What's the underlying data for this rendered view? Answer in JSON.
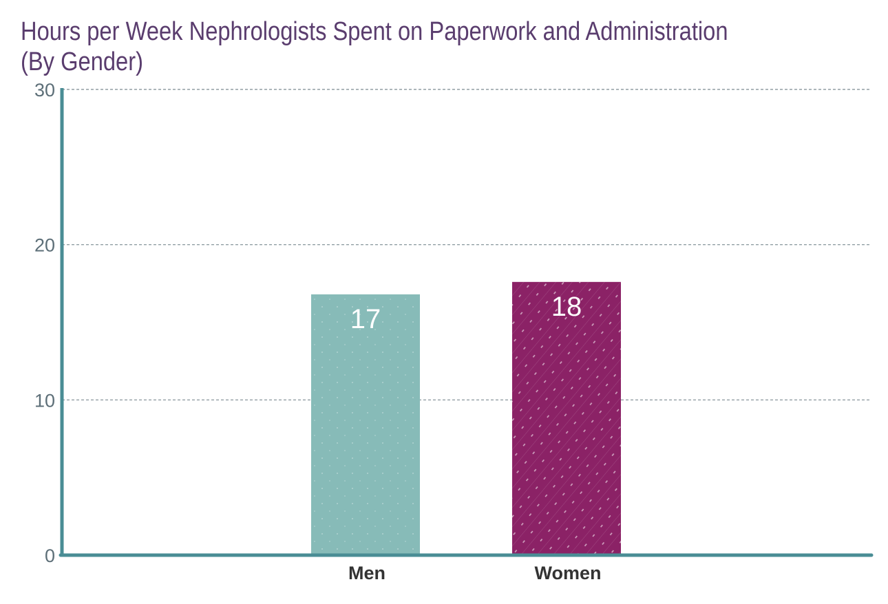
{
  "chart_data": {
    "type": "bar",
    "title": "Hours per Week Nephrologists Spent on Paperwork and Administration (By Gender)",
    "categories": [
      "Men",
      "Women"
    ],
    "values": [
      16.8,
      17.6
    ],
    "data_labels": [
      "17",
      "18"
    ],
    "xlabel": "",
    "ylabel": "",
    "ylim": [
      0,
      30
    ],
    "yticks": [
      0,
      10,
      20,
      30
    ],
    "grid": true,
    "legend": "none"
  },
  "colors": {
    "bars": [
      "#87bbb8",
      "#8b2266"
    ],
    "axis": "#4a8d95",
    "grid": "#7a8a90",
    "title": "#5a3d6e"
  }
}
